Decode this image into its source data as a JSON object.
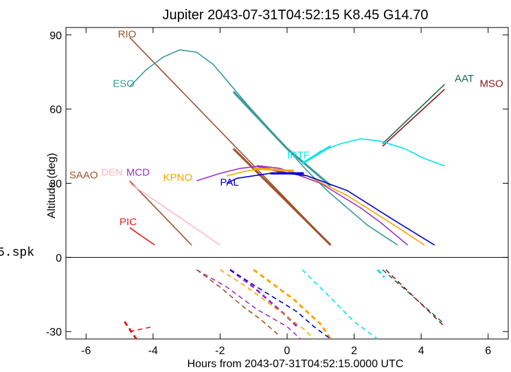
{
  "chart_data": {
    "type": "line",
    "title": "Jupiter 2043-07-31T04:52:15  K8.45  G14.70",
    "xlabel": "Hours from 2043-07-31T04:52:15.0000 UTC",
    "ylabel": "Altitude (deg)",
    "xlim": [
      -6.6,
      6.6
    ],
    "ylim": [
      -33,
      93
    ],
    "x_ticks": [
      -6,
      -4,
      -2,
      0,
      2,
      4,
      6
    ],
    "y_ticks": [
      -30,
      0,
      30,
      60,
      90
    ],
    "zero_line": true,
    "grid": false,
    "margin_text": "5.spk",
    "series": [
      {
        "name": "RIO",
        "color": "#a0522d",
        "label_pos": [
          -5.05,
          89
        ],
        "points": [
          [
            -4.7,
            89
          ],
          [
            1.3,
            5
          ]
        ],
        "thick": [
          [
            -1.6,
            44
          ],
          [
            1.3,
            5
          ]
        ],
        "dashed": []
      },
      {
        "name": "ESO",
        "color": "#3a9a98",
        "label_pos": [
          -5.2,
          69
        ],
        "points": [
          [
            -4.7,
            69
          ],
          [
            -4.2,
            76
          ],
          [
            -3.7,
            81
          ],
          [
            -3.2,
            84
          ],
          [
            -2.7,
            83
          ],
          [
            -2.2,
            78
          ],
          [
            -1.7,
            70
          ],
          [
            -1.2,
            62
          ],
          [
            -0.6,
            53
          ],
          [
            0,
            44
          ],
          [
            0.6,
            35
          ],
          [
            1.2,
            27
          ],
          [
            1.8,
            20
          ],
          [
            2.4,
            13
          ],
          [
            3.3,
            5
          ]
        ],
        "thick": [
          [
            -1.6,
            67
          ],
          [
            0,
            44
          ],
          [
            1.3,
            29
          ]
        ],
        "dashed": []
      },
      {
        "name": "AAT",
        "color": "#1a6b4e",
        "label_pos": [
          5.0,
          71
        ],
        "points": [
          [
            2.85,
            46
          ],
          [
            4.7,
            70
          ]
        ],
        "thick": [],
        "dashed": [
          [
            [
              2.85,
              -5
            ],
            [
              4.7,
              -27
            ]
          ]
        ]
      },
      {
        "name": "MSO",
        "color": "#8b1a1a",
        "label_pos": [
          5.75,
          69
        ],
        "points": [
          [
            2.85,
            45
          ],
          [
            4.7,
            68
          ]
        ],
        "thick": [],
        "dashed": [
          [
            [
              2.95,
              -5
            ],
            [
              4.7,
              -28
            ]
          ]
        ]
      },
      {
        "name": "IRTF",
        "color": "#00e5ee",
        "label_pos": [
          0,
          40
        ],
        "points": [
          [
            0.45,
            38
          ],
          [
            1.0,
            43
          ],
          [
            1.6,
            46
          ],
          [
            2.2,
            48
          ],
          [
            2.8,
            47
          ],
          [
            3.5,
            44
          ],
          [
            4.1,
            40
          ],
          [
            4.7,
            37
          ]
        ],
        "thick": [
          [
            0.45,
            38
          ],
          [
            1.3,
            45
          ]
        ],
        "dashed": [
          [
            [
              0.45,
              -5
            ],
            [
              1.2,
              -15
            ],
            [
              2.0,
              -26
            ],
            [
              2.7,
              -33
            ]
          ],
          [
            [
              2.7,
              -5
            ],
            [
              2.9,
              -8
            ]
          ]
        ]
      },
      {
        "name": "MCD",
        "color": "#9932cc",
        "label_pos": [
          -4.8,
          33
        ],
        "points": [
          [
            -2.7,
            31
          ],
          [
            -2.0,
            34
          ],
          [
            -1.4,
            36
          ],
          [
            -0.8,
            37
          ],
          [
            -0.2,
            36
          ],
          [
            0.4,
            33
          ],
          [
            1.0,
            30
          ],
          [
            1.6,
            25
          ],
          [
            2.2,
            20
          ],
          [
            2.8,
            14
          ],
          [
            3.6,
            5
          ]
        ],
        "thick": [
          [
            -0.9,
            37
          ],
          [
            0,
            34
          ]
        ],
        "dashed": [
          [
            [
              -2.7,
              -5
            ],
            [
              -1.8,
              -12
            ],
            [
              -0.9,
              -21
            ],
            [
              0,
              -28
            ],
            [
              0.4,
              -33
            ]
          ],
          [
            [
              -1.7,
              -5
            ],
            [
              -1.0,
              -12
            ],
            [
              -0.5,
              -18
            ],
            [
              0,
              -24
            ],
            [
              0.3,
              -28
            ]
          ]
        ]
      },
      {
        "name": "KPNO",
        "color": "#f5a500",
        "label_pos": [
          -3.7,
          31
        ],
        "points": [
          [
            -1.8,
            33
          ],
          [
            -1.2,
            35
          ],
          [
            -0.6,
            36
          ],
          [
            0,
            35
          ],
          [
            0.6,
            33
          ],
          [
            1.2,
            29
          ],
          [
            1.8,
            25
          ],
          [
            2.5,
            19
          ],
          [
            3.2,
            13
          ],
          [
            4.1,
            5
          ]
        ],
        "thick": [
          [
            -1.0,
            36
          ],
          [
            0.2,
            35
          ]
        ],
        "dashed": [
          [
            [
              -2.0,
              -5
            ],
            [
              -1.2,
              -12
            ],
            [
              -0.6,
              -18
            ],
            [
              0,
              -24
            ],
            [
              0.5,
              -29
            ],
            [
              0.8,
              -33
            ]
          ],
          [
            [
              -1.0,
              -5
            ],
            [
              -0.4,
              -11
            ],
            [
              0.2,
              -17
            ],
            [
              0.6,
              -22
            ],
            [
              1.0,
              -27
            ],
            [
              1.3,
              -33
            ]
          ]
        ]
      },
      {
        "name": "PAL",
        "color": "#0000cd",
        "label_pos": [
          -2.0,
          29
        ],
        "points": [
          [
            -1.8,
            30
          ],
          [
            -1.5,
            32
          ],
          [
            -1.0,
            33
          ],
          [
            -0.5,
            34
          ],
          [
            0,
            34
          ],
          [
            0.6,
            33
          ],
          [
            1.2,
            30
          ],
          [
            1.8,
            27
          ],
          [
            2.5,
            21
          ],
          [
            3.2,
            15
          ],
          [
            3.8,
            10
          ],
          [
            4.4,
            5
          ]
        ],
        "thick": [
          [
            -0.5,
            34
          ],
          [
            0.5,
            34
          ]
        ],
        "dashed": [
          [
            [
              -1.7,
              -5
            ],
            [
              -0.9,
              -12
            ],
            [
              -0.3,
              -17
            ],
            [
              0.3,
              -22
            ],
            [
              0.8,
              -28
            ],
            [
              1.3,
              -33
            ]
          ]
        ]
      },
      {
        "name": "SAAO",
        "color": "#a0522d",
        "label_pos": [
          -6.5,
          32
        ],
        "points": [
          [
            -4.7,
            31
          ],
          [
            -2.85,
            5
          ]
        ],
        "thick": [],
        "dashed": [
          [
            [
              -2.7,
              -5
            ],
            [
              -2.0,
              -12
            ],
            [
              -1.3,
              -20
            ],
            [
              -0.8,
              -25
            ],
            [
              -0.2,
              -32
            ]
          ]
        ]
      },
      {
        "name": "DEN",
        "color": "#ffb6c1",
        "label_pos": [
          -5.55,
          33
        ],
        "points": [
          [
            -4.7,
            30
          ],
          [
            -2.0,
            5
          ]
        ],
        "thick": [],
        "dashed": []
      },
      {
        "name": "PIC",
        "color": "#e31a1c",
        "label_pos": [
          -5.0,
          13
        ],
        "points": [
          [
            -4.7,
            12
          ],
          [
            -3.95,
            5
          ]
        ],
        "thick": [],
        "dashed": [
          [
            [
              -4.7,
              -30
            ],
            [
              -4.0,
              -28
            ]
          ],
          [
            [
              -4.85,
              -26
            ],
            [
              -4.5,
              -33
            ]
          ]
        ]
      }
    ]
  }
}
